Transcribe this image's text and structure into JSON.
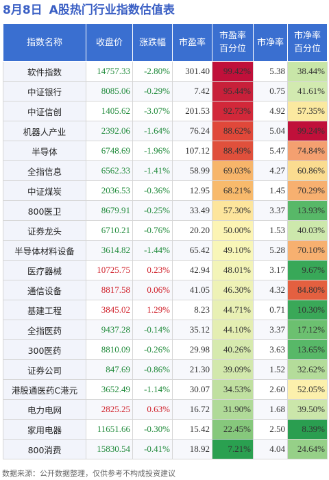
{
  "header": {
    "date": "8月8日",
    "title": "A股热门行业指数估值表"
  },
  "columns": [
    "指数名称",
    "收盘价",
    "涨跌幅",
    "市盈率",
    "市盈率\n百分位",
    "市净率",
    "市净率\n百分位"
  ],
  "rows": [
    {
      "name": "软件指数",
      "close": "14757.33",
      "change": "-2.80%",
      "pe": "301.40",
      "pe_pct": "99.42%",
      "pb": "5.38",
      "pb_pct": "38.44%",
      "pe_color": "#c0103a",
      "pb_color": "#c8e6a8"
    },
    {
      "name": "中证银行",
      "close": "8085.06",
      "change": "-0.29%",
      "pe": "7.42",
      "pe_pct": "95.44%",
      "pb": "0.75",
      "pb_pct": "41.61%",
      "pe_color": "#c8203a",
      "pb_color": "#d2eab0"
    },
    {
      "name": "中证信创",
      "close": "1405.62",
      "change": "-3.07%",
      "pe": "201.53",
      "pe_pct": "92.73%",
      "pb": "4.92",
      "pb_pct": "57.35%",
      "pe_color": "#d2283a",
      "pb_color": "#fbe9a0"
    },
    {
      "name": "机器人产业",
      "close": "2392.06",
      "change": "-1.64%",
      "pe": "76.24",
      "pe_pct": "88.62%",
      "pb": "5.04",
      "pb_pct": "99.24%",
      "pe_color": "#e0483a",
      "pb_color": "#c0103a"
    },
    {
      "name": "半导体",
      "close": "6748.69",
      "change": "-1.96%",
      "pe": "107.12",
      "pe_pct": "88.49%",
      "pb": "5.47",
      "pb_pct": "74.84%",
      "pe_color": "#e0503c",
      "pb_color": "#f4a070"
    },
    {
      "name": "全指信息",
      "close": "6562.33",
      "change": "-1.41%",
      "pe": "58.99",
      "pe_pct": "69.03%",
      "pb": "4.27",
      "pb_pct": "60.86%",
      "pe_color": "#f7b56a",
      "pb_color": "#fbdc90"
    },
    {
      "name": "中证煤炭",
      "close": "2036.53",
      "change": "-0.36%",
      "pe": "12.95",
      "pe_pct": "68.21%",
      "pb": "1.45",
      "pb_pct": "70.29%",
      "pe_color": "#f8ba6c",
      "pb_color": "#f7b070"
    },
    {
      "name": "800医卫",
      "close": "8679.91",
      "change": "-0.25%",
      "pe": "33.49",
      "pe_pct": "57.30%",
      "pb": "3.37",
      "pb_pct": "13.93%",
      "pe_color": "#fde59c",
      "pb_color": "#58b868"
    },
    {
      "name": "证券龙头",
      "close": "6710.21",
      "change": "-0.76%",
      "pe": "20.20",
      "pe_pct": "50.00%",
      "pb": "1.53",
      "pb_pct": "40.03%",
      "pe_color": "#fcf4b4",
      "pb_color": "#cde8ac"
    },
    {
      "name": "半导体材料设备",
      "close": "3614.82",
      "change": "-1.44%",
      "pe": "65.42",
      "pe_pct": "49.10%",
      "pb": "5.28",
      "pb_pct": "70.10%",
      "pe_color": "#f8f6b8",
      "pb_color": "#f7b070"
    },
    {
      "name": "医疗器械",
      "close": "10725.75",
      "change": "0.23%",
      "pe": "42.94",
      "pe_pct": "48.01%",
      "pb": "3.17",
      "pb_pct": "9.67%",
      "pe_color": "#f3f4b8",
      "pb_color": "#38a858"
    },
    {
      "name": "通信设备",
      "close": "8817.58",
      "change": "0.06%",
      "pe": "41.05",
      "pe_pct": "46.30%",
      "pb": "4.32",
      "pb_pct": "84.80%",
      "pe_color": "#eef2b6",
      "pb_color": "#e46040"
    },
    {
      "name": "基建工程",
      "close": "3845.02",
      "change": "1.29%",
      "pe": "8.23",
      "pe_pct": "44.71%",
      "pb": "0.71",
      "pb_pct": "10.30%",
      "pe_color": "#e8f0b4",
      "pb_color": "#3aa858"
    },
    {
      "name": "全指医药",
      "close": "9437.28",
      "change": "-0.14%",
      "pe": "35.12",
      "pe_pct": "44.10%",
      "pb": "3.37",
      "pb_pct": "17.12%",
      "pe_color": "#e4eeb2",
      "pb_color": "#6cc070"
    },
    {
      "name": "300医药",
      "close": "8810.09",
      "change": "-0.26%",
      "pe": "29.98",
      "pe_pct": "40.26%",
      "pb": "3.63",
      "pb_pct": "13.65%",
      "pe_color": "#d6eaae",
      "pb_color": "#58b868"
    },
    {
      "name": "证券公司",
      "close": "847.69",
      "change": "-0.86%",
      "pe": "21.30",
      "pe_pct": "39.09%",
      "pb": "1.52",
      "pb_pct": "32.62%",
      "pe_color": "#d2e8ac",
      "pb_color": "#b4dc9a"
    },
    {
      "name": "港股通医药C港元",
      "close": "3652.49",
      "change": "-1.14%",
      "pe": "30.07",
      "pe_pct": "34.53%",
      "pb": "2.60",
      "pb_pct": "52.05%",
      "pe_color": "#c0e0a0",
      "pb_color": "#fcf0ac"
    },
    {
      "name": "电力电网",
      "close": "2825.25",
      "change": "0.63%",
      "pe": "16.72",
      "pe_pct": "31.90%",
      "pb": "1.68",
      "pb_pct": "39.50%",
      "pe_color": "#b0da98",
      "pb_color": "#cbe6aa"
    },
    {
      "name": "家用电器",
      "close": "11651.66",
      "change": "-0.30%",
      "pe": "15.42",
      "pe_pct": "22.45%",
      "pb": "2.50",
      "pb_pct": "8.39%",
      "pe_color": "#86c87c",
      "pb_color": "#2a9e50"
    },
    {
      "name": "800消费",
      "close": "15830.54",
      "change": "-0.41%",
      "pe": "18.92",
      "pe_pct": "7.21%",
      "pb": "4.04",
      "pb_pct": "24.64%",
      "pe_color": "#2aa050",
      "pb_color": "#96d088"
    }
  ],
  "footer": "数据来源：公开数据整理，仅供参考不构成投资建议"
}
